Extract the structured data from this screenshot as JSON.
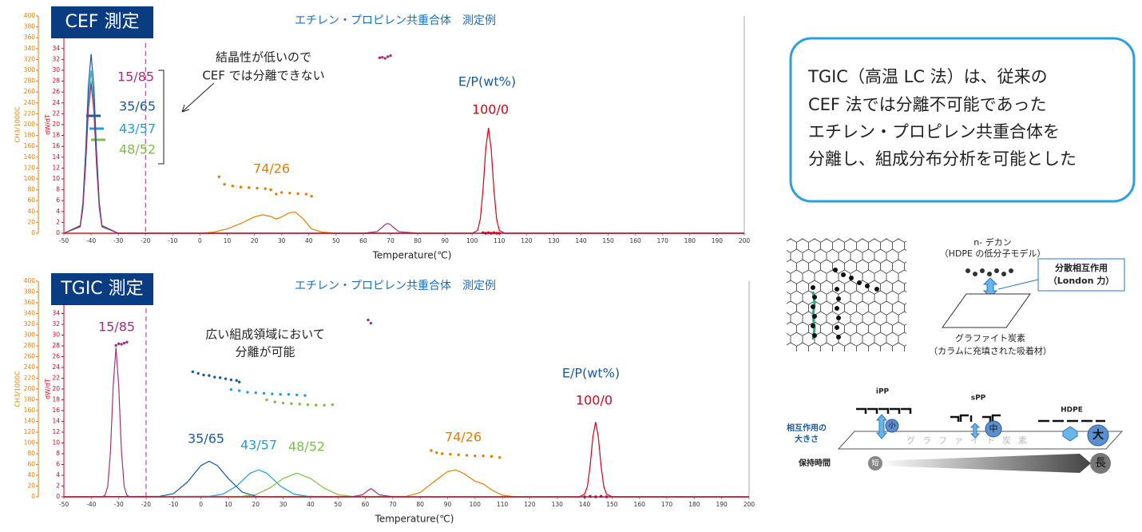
{
  "chart_data": [
    {
      "type": "line",
      "title": "CEF 測定",
      "subtitle": "エチレン・プロピレン共重合体　測定例",
      "xlabel": "Temperature(℃)",
      "ylabel": "dW/dT",
      "y2label": "CH3/1000C",
      "ycolor": "#d7001a",
      "y2color": "#e67e00",
      "xlim": [
        -50,
        200
      ],
      "xticks": [
        -50,
        -40,
        -30,
        -20,
        -10,
        0,
        10,
        20,
        30,
        40,
        50,
        60,
        70,
        80,
        90,
        100,
        110,
        120,
        130,
        140,
        150,
        160,
        170,
        180,
        190,
        200
      ],
      "ylim": [
        0,
        40
      ],
      "yticks": [
        0,
        2,
        4,
        6,
        8,
        10,
        12,
        14,
        16,
        18,
        20,
        22,
        24,
        26,
        28,
        30,
        32,
        34
      ],
      "y2lim": [
        0,
        400
      ],
      "y2ticks": [
        0,
        20,
        40,
        60,
        80,
        100,
        120,
        140,
        160,
        180,
        200,
        220,
        240,
        260,
        280,
        300,
        320,
        340,
        360,
        380,
        400
      ],
      "vline": -20,
      "legend_title": "E/P(wt%)",
      "annotation": [
        "結晶性が低いので",
        "CEF では分離できない"
      ],
      "series": [
        {
          "name": "74/26",
          "color": "#e67e00",
          "x": [
            -50,
            0,
            5,
            10,
            15,
            20,
            23,
            26,
            28,
            30,
            33,
            35,
            38,
            41,
            45,
            50,
            200
          ],
          "values": [
            0,
            0,
            0.2,
            0.8,
            1.8,
            3.0,
            3.4,
            3.1,
            2.6,
            3.0,
            3.8,
            3.9,
            2.6,
            0.8,
            0.2,
            0,
            0
          ]
        },
        {
          "name": "43/57",
          "color": "#1ea0dc",
          "x": [
            -50,
            -44,
            -43,
            -42,
            -41,
            -40,
            -39,
            -38,
            -37,
            -36,
            -30,
            200
          ],
          "values": [
            0,
            1.3,
            5.2,
            13.7,
            24.6,
            30,
            24.6,
            13.7,
            5.2,
            1.3,
            0,
            0
          ]
        },
        {
          "name": "48/52",
          "color": "#7dc043",
          "x": [
            -50,
            -44,
            -43,
            -42,
            -41,
            -40,
            -39,
            -38,
            -37,
            -36,
            -30,
            200
          ],
          "values": [
            0,
            1.2,
            4.8,
            12.8,
            23,
            28,
            23,
            12.8,
            4.8,
            1.2,
            0,
            0
          ]
        },
        {
          "name": "35/65",
          "color": "#1a5aa0",
          "x": [
            -50,
            -44,
            -43,
            -42,
            -41,
            -40,
            -39,
            -38,
            -37,
            -36,
            -30,
            200
          ],
          "values": [
            0,
            1.4,
            5.7,
            15.1,
            27.1,
            33,
            27.1,
            15.1,
            5.7,
            1.4,
            0,
            0
          ]
        },
        {
          "name": "15/85",
          "color": "#a3307f",
          "x": [
            -50,
            -44,
            -43,
            -42,
            -41,
            -40,
            -39,
            -38,
            -37,
            -36,
            -30,
            60,
            65,
            67,
            68,
            69,
            70,
            71,
            73,
            80,
            200
          ],
          "values": [
            0,
            1.2,
            4.7,
            12.6,
            22.6,
            27.5,
            22.6,
            12.6,
            4.7,
            1.2,
            0,
            0,
            0.3,
            1.1,
            1.6,
            1.8,
            1.6,
            1.1,
            0.3,
            0,
            0
          ]
        },
        {
          "name": "100/0",
          "color": "#d7001a",
          "x": [
            -50,
            100,
            102,
            103,
            104,
            105,
            106,
            107,
            108,
            109,
            110,
            112,
            200
          ],
          "values": [
            0,
            0,
            0.5,
            2.6,
            8.0,
            15.5,
            19.4,
            15.5,
            8.0,
            2.6,
            0.5,
            0,
            0
          ]
        },
        {
          "color": "#e67e00",
          "marker": "dots",
          "axis": "y2",
          "x": [
            7,
            9,
            12,
            15,
            18,
            21,
            24,
            26,
            28,
            30,
            33,
            36,
            39,
            41
          ],
          "values": [
            104,
            90,
            87,
            85,
            84,
            83,
            82,
            80,
            72,
            75,
            74,
            73,
            72,
            68
          ]
        },
        {
          "color": "#a3307f",
          "marker": "dots",
          "axis": "y2",
          "x": [
            66,
            67,
            68,
            69,
            70
          ],
          "values": [
            323,
            324,
            322,
            325,
            327
          ]
        },
        {
          "color": "#d7001a",
          "marker": "dots",
          "axis": "y2",
          "x": [
            104,
            105,
            106,
            107,
            108,
            109,
            110
          ],
          "values": [
            1,
            0,
            1,
            0,
            1,
            0,
            0
          ]
        }
      ]
    },
    {
      "type": "line",
      "title": "TGIC 測定",
      "subtitle": "エチレン・プロピレン共重合体　測定例",
      "xlabel": "Temperature(℃)",
      "ylabel": "dW/dT",
      "y2label": "CH3/1000C",
      "ycolor": "#d7001a",
      "y2color": "#e67e00",
      "xlim": [
        -50,
        200
      ],
      "xticks": [
        -50,
        -40,
        -30,
        -20,
        -10,
        0,
        10,
        20,
        30,
        40,
        50,
        60,
        70,
        80,
        90,
        100,
        110,
        120,
        130,
        140,
        150,
        160,
        170,
        180,
        190,
        200
      ],
      "ylim": [
        0,
        40
      ],
      "yticks": [
        0,
        2,
        4,
        6,
        8,
        10,
        12,
        14,
        16,
        18,
        20,
        22,
        24,
        26,
        28,
        30,
        32,
        34
      ],
      "y2lim": [
        0,
        400
      ],
      "y2ticks": [
        0,
        20,
        40,
        60,
        80,
        100,
        120,
        140,
        160,
        180,
        200,
        220,
        240,
        260,
        280,
        300,
        320,
        340,
        360,
        380,
        400
      ],
      "vline": -20,
      "legend_title": "E/P(wt%)",
      "annotation": [
        "広い組成領域において",
        "分離が可能"
      ],
      "series": [
        {
          "name": "74/26",
          "color": "#e67e00",
          "x": [
            -50,
            75,
            80,
            85,
            90,
            93,
            96,
            100,
            103,
            106,
            110,
            115,
            200
          ],
          "values": [
            0,
            0.1,
            0.8,
            2.8,
            4.7,
            5.0,
            4.3,
            2.9,
            2.4,
            1.3,
            0.3,
            0,
            0
          ]
        },
        {
          "name": "43/57",
          "color": "#1ea0dc",
          "x": [
            -50,
            3,
            8,
            13,
            18,
            21,
            24,
            29,
            34,
            39,
            45,
            200
          ],
          "values": [
            0,
            0.1,
            0.5,
            2.0,
            4.4,
            5.0,
            4.4,
            2.0,
            0.5,
            0.1,
            0,
            0
          ]
        },
        {
          "name": "48/52",
          "color": "#7dc043",
          "x": [
            -50,
            15,
            20,
            25,
            30,
            35,
            40,
            45,
            50,
            55,
            60,
            200
          ],
          "values": [
            0,
            0.1,
            0.4,
            1.6,
            3.4,
            4.4,
            3.4,
            1.6,
            0.4,
            0.1,
            0,
            0
          ]
        },
        {
          "name": "35/65",
          "color": "#1a5aa0",
          "x": [
            -50,
            -15,
            -10,
            -5,
            0,
            3,
            6,
            10,
            15,
            20,
            25,
            35,
            200
          ],
          "values": [
            0,
            0.1,
            0.6,
            2.7,
            5.8,
            6.6,
            5.8,
            3.4,
            0.9,
            0.1,
            0,
            0,
            0
          ]
        },
        {
          "name": "15/85",
          "color": "#a3307f",
          "x": [
            -50,
            -36,
            -35,
            -34,
            -33,
            -32,
            -31,
            -30,
            -29,
            -28,
            -27,
            -26,
            -20,
            55,
            59,
            61,
            62,
            63,
            65,
            70,
            200
          ],
          "values": [
            0,
            0,
            0.3,
            1.9,
            8.5,
            20.6,
            27.7,
            20.6,
            8.5,
            1.9,
            0.3,
            0,
            0,
            0,
            0.4,
            1.2,
            1.5,
            1.2,
            0.4,
            0,
            0
          ]
        },
        {
          "name": "100/0",
          "color": "#d7001a",
          "x": [
            -50,
            138,
            140,
            141,
            142,
            143,
            144,
            145,
            146,
            147,
            148,
            150,
            200
          ],
          "values": [
            0,
            0,
            0.5,
            1.9,
            5.7,
            11.1,
            13.9,
            11.1,
            5.7,
            1.9,
            0.5,
            0,
            0
          ]
        },
        {
          "color": "#1a5aa0",
          "marker": "dots",
          "axis": "y2",
          "x": [
            -3,
            -1,
            1,
            3,
            5,
            7,
            9,
            11,
            13,
            14
          ],
          "values": [
            232,
            229,
            226,
            225,
            222,
            221,
            219,
            217,
            216,
            213
          ]
        },
        {
          "color": "#1ea0dc",
          "marker": "dots",
          "axis": "y2",
          "x": [
            11,
            14,
            17,
            20,
            23,
            26,
            29,
            32,
            35,
            38
          ],
          "values": [
            199,
            197,
            194,
            193,
            192,
            191,
            190,
            190,
            189,
            188
          ]
        },
        {
          "color": "#7dc043",
          "marker": "dots",
          "axis": "y2",
          "x": [
            24,
            27,
            30,
            33,
            36,
            39,
            42,
            45,
            48
          ],
          "values": [
            180,
            176,
            174,
            173,
            172,
            171,
            170,
            170,
            171
          ]
        },
        {
          "color": "#e67e00",
          "marker": "dots",
          "axis": "y2",
          "x": [
            84,
            86,
            88,
            91,
            94,
            97,
            100,
            103,
            106,
            109
          ],
          "values": [
            86,
            82,
            80,
            79,
            78,
            77,
            76,
            76,
            75,
            73
          ]
        },
        {
          "color": "#a3307f",
          "marker": "dots",
          "axis": "y2",
          "x": [
            -31,
            -30,
            -29,
            -28,
            -27
          ],
          "values": [
            281,
            284,
            283,
            285,
            287
          ]
        },
        {
          "color": "#a3307f",
          "marker": "dots",
          "axis": "y2",
          "x": [
            61,
            62
          ],
          "values": [
            328,
            322
          ]
        },
        {
          "color": "#d7001a",
          "marker": "dots",
          "axis": "y2",
          "x": [
            140,
            142,
            144,
            146,
            148
          ],
          "values": [
            0,
            1,
            0,
            1,
            0
          ]
        }
      ]
    }
  ],
  "info_box": {
    "lines": [
      "TGIC（高温 LC 法）は、従来の",
      "CEF 法では分離不可能であった",
      "エチレン・プロピレン共重合体を",
      "分離し、組成分布分析を可能とした"
    ]
  },
  "adsorption_diagram": {
    "molecule": "n- デカン",
    "molecule_note": "（HDPE の低分子モデル）",
    "interaction": "分散相互作用",
    "interaction_note": "（London 力）",
    "surface": "グラファイト炭素",
    "surface_note": "（カラムに充填された吸着材）"
  },
  "retention_diagram": {
    "polymers": [
      "iPP",
      "sPP",
      "HDPE"
    ],
    "strengths": [
      "小",
      "中",
      "大"
    ],
    "interaction_label": [
      "相互作用の",
      "大きさ"
    ],
    "surface": "グラファイト炭素",
    "time_label": "保持時間",
    "short": "短",
    "long": "長"
  }
}
